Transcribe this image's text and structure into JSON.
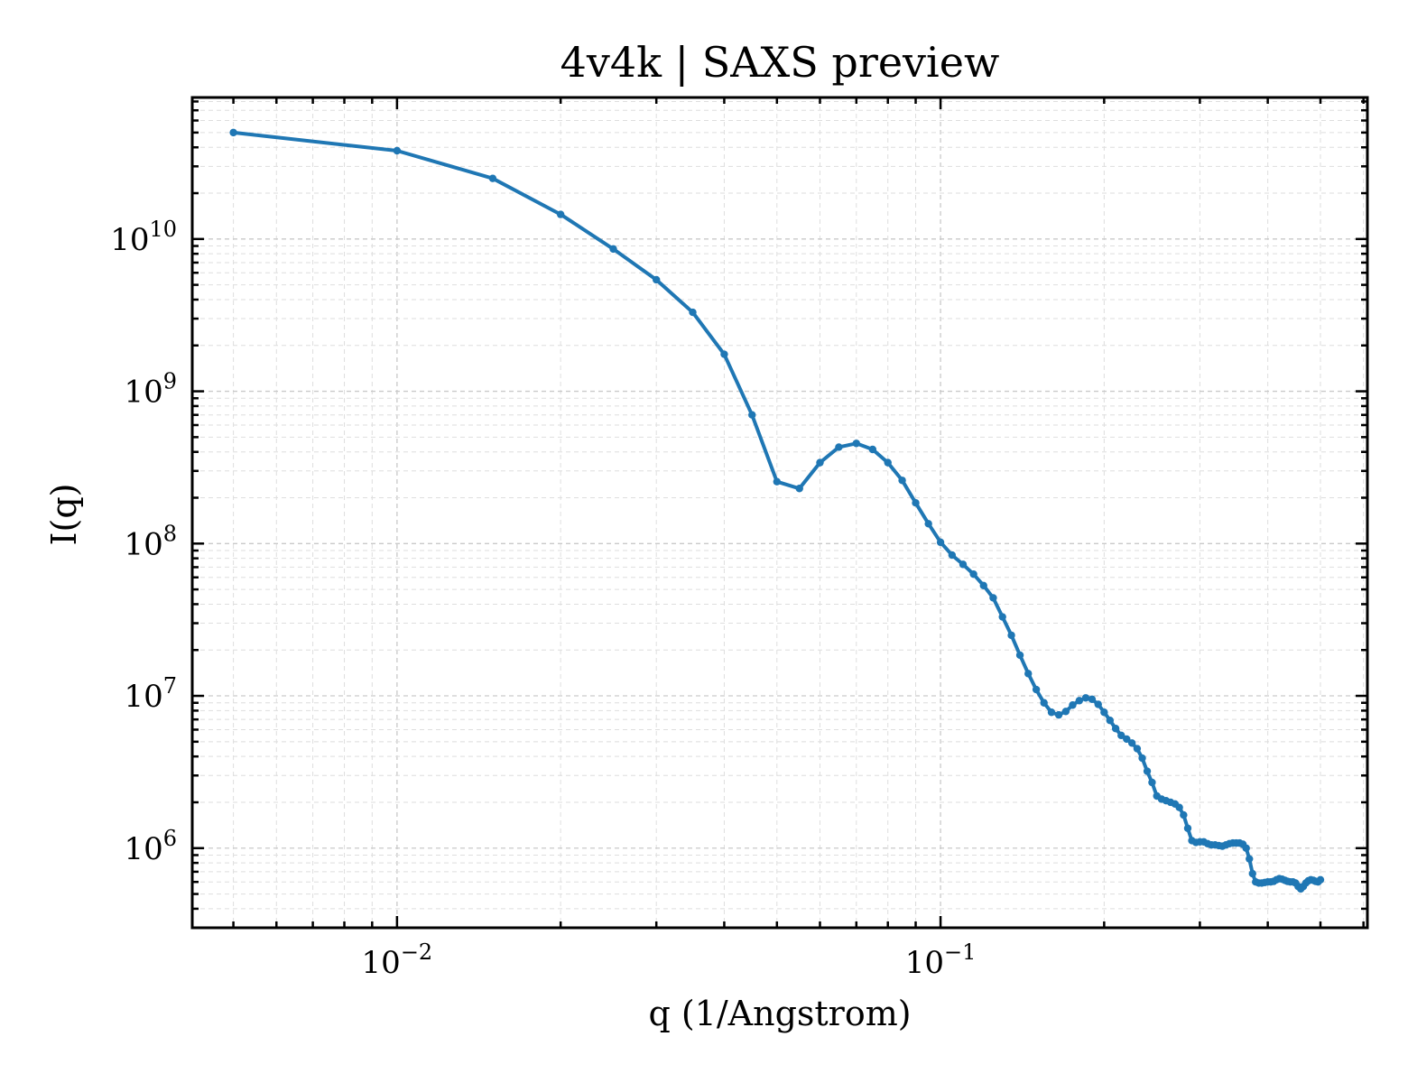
{
  "chart_data": {
    "type": "line",
    "title": "4v4k | SAXS preview",
    "xlabel": "q (1/Angstrom)",
    "ylabel": "I(q)",
    "xscale": "log",
    "yscale": "log",
    "xlim": [
      0.0042,
      0.61
    ],
    "ylim": [
      300000,
      85000000000
    ],
    "grid": true,
    "legend": "none",
    "series_color": "#1f77b4",
    "x_ticks": [
      {
        "value": 0.01,
        "base": "10",
        "exp": "−2"
      },
      {
        "value": 0.1,
        "base": "10",
        "exp": "−1"
      }
    ],
    "y_ticks": [
      {
        "value": 1000000,
        "base": "10",
        "exp": "6"
      },
      {
        "value": 10000000,
        "base": "10",
        "exp": "7"
      },
      {
        "value": 100000000,
        "base": "10",
        "exp": "8"
      },
      {
        "value": 1000000000,
        "base": "10",
        "exp": "9"
      },
      {
        "value": 10000000000,
        "base": "10",
        "exp": "10"
      }
    ],
    "series": [
      {
        "x": [
          0.005,
          0.01,
          0.015,
          0.02,
          0.025,
          0.03,
          0.035,
          0.04,
          0.045,
          0.05,
          0.055,
          0.06,
          0.065,
          0.07,
          0.075,
          0.08,
          0.085,
          0.09,
          0.095,
          0.1,
          0.105,
          0.11,
          0.115,
          0.12,
          0.125,
          0.13,
          0.135,
          0.14,
          0.145,
          0.15,
          0.155,
          0.16,
          0.165,
          0.17,
          0.175,
          0.18,
          0.185,
          0.19,
          0.195,
          0.2,
          0.205,
          0.21,
          0.215,
          0.22,
          0.225,
          0.23,
          0.235,
          0.24,
          0.245,
          0.25,
          0.255,
          0.26,
          0.265,
          0.27,
          0.275,
          0.28,
          0.285,
          0.29,
          0.295,
          0.3,
          0.305,
          0.31,
          0.315,
          0.32,
          0.325,
          0.33,
          0.335,
          0.34,
          0.345,
          0.35,
          0.355,
          0.36,
          0.365,
          0.37,
          0.375,
          0.38,
          0.385,
          0.39,
          0.395,
          0.4,
          0.405,
          0.41,
          0.415,
          0.42,
          0.425,
          0.43,
          0.435,
          0.44,
          0.445,
          0.45,
          0.455,
          0.46,
          0.465,
          0.47,
          0.475,
          0.48,
          0.485,
          0.49,
          0.495,
          0.5
        ],
        "y": [
          50000000000,
          38000000000,
          25000000000,
          14500000000,
          8600000000,
          5400000000,
          3300000000,
          1750000000,
          700000000,
          255000000,
          230000000,
          340000000,
          430000000,
          455000000,
          415000000,
          340000000,
          260000000,
          185000000,
          135000000,
          102000000,
          84000000,
          73000000,
          63000000,
          53000000,
          44000000,
          33000000,
          25000000,
          18500000,
          14000000,
          11000000,
          9000000,
          7800000,
          7500000,
          7900000,
          8700000,
          9300000,
          9700000,
          9500000,
          8800000,
          7800000,
          6900000,
          6100000,
          5500000,
          5200000,
          4900000,
          4500000,
          3900000,
          3200000,
          2700000,
          2200000,
          2100000,
          2050000,
          2000000,
          1950000,
          1850000,
          1650000,
          1350000,
          1120000,
          1090000,
          1100000,
          1100000,
          1070000,
          1050000,
          1050000,
          1040000,
          1030000,
          1050000,
          1070000,
          1080000,
          1080000,
          1080000,
          1060000,
          1000000,
          850000,
          680000,
          600000,
          590000,
          590000,
          595000,
          600000,
          600000,
          605000,
          620000,
          630000,
          625000,
          615000,
          605000,
          600000,
          600000,
          590000,
          560000,
          540000,
          560000,
          590000,
          610000,
          620000,
          615000,
          605000,
          600000,
          620000
        ]
      }
    ]
  }
}
